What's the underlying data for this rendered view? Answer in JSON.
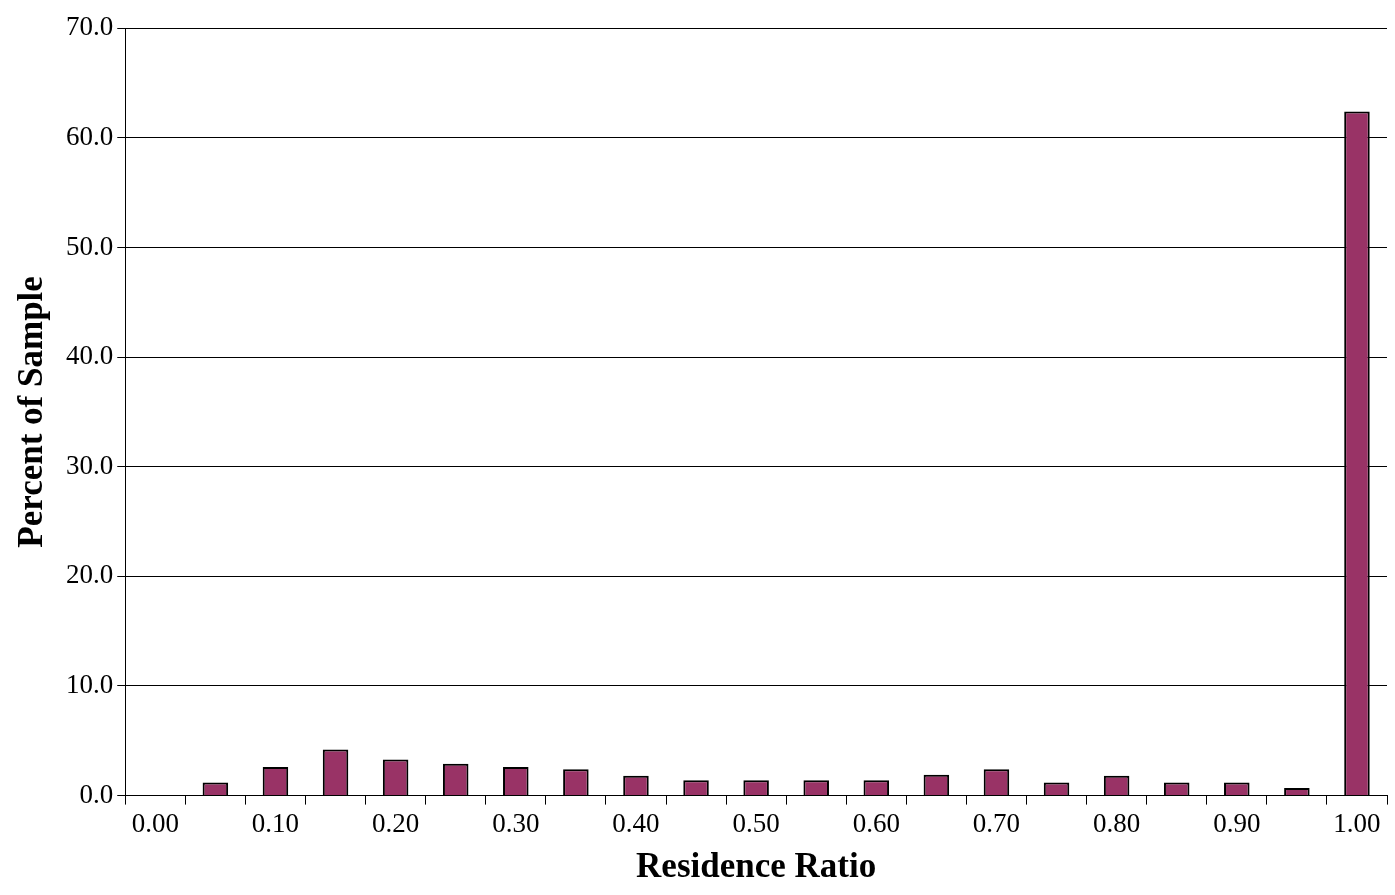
{
  "chart_data": {
    "type": "bar",
    "xlabel": "Residence Ratio",
    "ylabel": "Percent of Sample",
    "categories": [
      "0.00",
      null,
      "0.10",
      null,
      "0.20",
      null,
      "0.30",
      null,
      "0.40",
      null,
      "0.50",
      null,
      "0.60",
      null,
      "0.70",
      null,
      "0.80",
      null,
      "0.90",
      null,
      "1.00"
    ],
    "values": [
      0,
      1.2,
      2.6,
      4.2,
      3.3,
      2.9,
      2.6,
      2.4,
      1.8,
      1.4,
      1.4,
      1.4,
      1.4,
      1.9,
      2.4,
      1.2,
      1.8,
      1.2,
      1.2,
      0.7,
      62.4
    ],
    "color": "#993366",
    "ylim": [
      0,
      70
    ],
    "yticks": [
      {
        "value": 0,
        "label": "0.0"
      },
      {
        "value": 10,
        "label": "10.0"
      },
      {
        "value": 20,
        "label": "20.0"
      },
      {
        "value": 30,
        "label": "30.0"
      },
      {
        "value": 40,
        "label": "40.0"
      },
      {
        "value": 50,
        "label": "50.0"
      },
      {
        "value": 60,
        "label": "60.0"
      },
      {
        "value": 70,
        "label": "70.0"
      }
    ],
    "grid": "y",
    "legend": false
  }
}
